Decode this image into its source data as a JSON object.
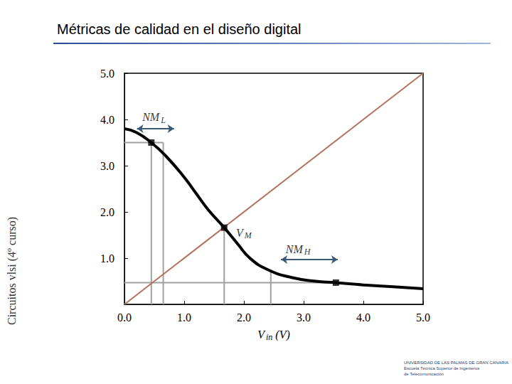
{
  "slide": {
    "title": "Métricas de calidad en el diseño digital",
    "side_text": "Circuitos vlsi (4º curso)",
    "footer": [
      "UNIVERSIDAD DE LAS PALMAS DE GRAN CANARIA",
      "Escuela Técnica Superior de Ingenieros",
      "de Telecomunicación"
    ]
  },
  "chart_data": {
    "type": "line",
    "xlabel": {
      "main": "V",
      "sub": "in",
      "suffix": " (V)"
    },
    "xlim": [
      0,
      5
    ],
    "ylim": [
      0,
      5
    ],
    "xticks": [
      {
        "value": 0,
        "label": "0.0"
      },
      {
        "value": 1,
        "label": "1.0"
      },
      {
        "value": 2,
        "label": "2.0"
      },
      {
        "value": 3,
        "label": "3.0"
      },
      {
        "value": 4,
        "label": "4.0"
      },
      {
        "value": 5,
        "label": "5.0"
      }
    ],
    "yticks": [
      {
        "value": 1,
        "label": "1.0"
      },
      {
        "value": 2,
        "label": "2.0"
      },
      {
        "value": 3,
        "label": "3.0"
      },
      {
        "value": 4,
        "label": "4.0"
      },
      {
        "value": 5,
        "label": "5.0"
      }
    ],
    "grid": false,
    "series": [
      {
        "color": "#000000",
        "line_style": "solid",
        "x": [
          0,
          0.2,
          0.45,
          0.7,
          1.0,
          1.2,
          1.4,
          1.67,
          1.9,
          2.1,
          2.4,
          2.8,
          3.2,
          3.54,
          4.0,
          4.5,
          5.0
        ],
        "values": [
          3.8,
          3.72,
          3.5,
          3.2,
          2.75,
          2.4,
          2.05,
          1.66,
          1.3,
          1.0,
          0.75,
          0.58,
          0.5,
          0.47,
          0.42,
          0.38,
          0.34
        ]
      },
      {
        "color": "#b5735f",
        "line_style": "solid",
        "x": [
          0,
          5
        ],
        "values": [
          0,
          5
        ]
      }
    ],
    "markers": {
      "marker": "square",
      "color": "#000000",
      "x": [
        0.45,
        1.67,
        3.54
      ],
      "values": [
        3.5,
        1.66,
        0.47
      ]
    },
    "guides": {
      "color": "#a0a0a0",
      "segments": [
        [
          [
            0.45,
            0
          ],
          [
            0.45,
            3.5
          ]
        ],
        [
          [
            0,
            3.5
          ],
          [
            0.65,
            3.5
          ]
        ],
        [
          [
            0.65,
            0
          ],
          [
            0.65,
            3.5
          ]
        ],
        [
          [
            1.67,
            0
          ],
          [
            1.67,
            1.66
          ]
        ],
        [
          [
            0,
            0.47
          ],
          [
            3.54,
            0.47
          ]
        ],
        [
          [
            2.45,
            0
          ],
          [
            2.45,
            0.75
          ]
        ]
      ]
    },
    "arrows": {
      "color": "#3a5a78",
      "segments": [
        [
          [
            0.21,
            3.8
          ],
          [
            0.83,
            3.8
          ]
        ],
        [
          [
            2.62,
            0.97
          ],
          [
            3.57,
            0.97
          ]
        ]
      ]
    },
    "annotations": [
      {
        "main": "NM",
        "sub": "L",
        "x": 0.3,
        "y": 4.05
      },
      {
        "main": "V",
        "sub": "M",
        "x": 1.87,
        "y": 1.55
      },
      {
        "main": "NM",
        "sub": "H",
        "x": 2.7,
        "y": 1.2
      }
    ]
  }
}
